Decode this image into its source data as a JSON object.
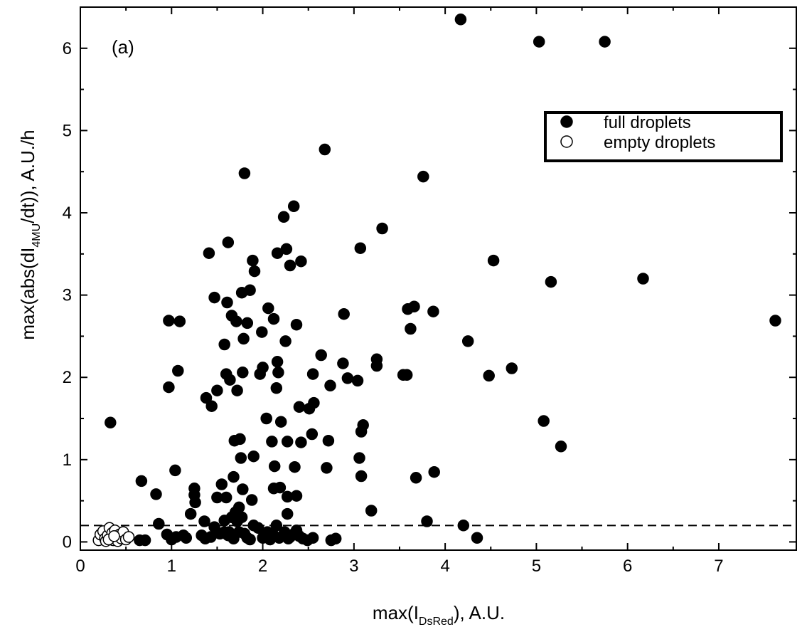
{
  "chart_data": {
    "type": "scatter",
    "panel_label": "(a)",
    "xlabel": {
      "main": "max(I",
      "sub": "DsRed",
      "tail": "), A.U."
    },
    "ylabel": {
      "main": "max(abs(dI",
      "sub": "4MU",
      "tail": "/dt)), A.U./h"
    },
    "xlim": [
      0,
      7.85
    ],
    "ylim": [
      -0.1,
      6.5
    ],
    "x_ticks": [
      0,
      1,
      2,
      3,
      4,
      5,
      6,
      7
    ],
    "y_ticks": [
      0,
      1,
      2,
      3,
      4,
      5,
      6
    ],
    "x_tick_labels": [
      "0",
      "1",
      "2",
      "3",
      "4",
      "5",
      "6",
      "7"
    ],
    "y_tick_labels": [
      "0",
      "1",
      "2",
      "3",
      "4",
      "5",
      "6"
    ],
    "threshold": 0.2,
    "grid": false,
    "legend_position": "top-right",
    "series": [
      {
        "name": "full droplets",
        "marker": "filled-circle",
        "color": "#000000",
        "points": [
          [
            0.33,
            1.45
          ],
          [
            0.67,
            0.74
          ],
          [
            0.83,
            0.58
          ],
          [
            0.97,
            2.69
          ],
          [
            0.97,
            1.88
          ],
          [
            1.04,
            0.87
          ],
          [
            1.07,
            2.08
          ],
          [
            1.09,
            2.68
          ],
          [
            1.25,
            0.65
          ],
          [
            1.25,
            0.57
          ],
          [
            1.26,
            0.48
          ],
          [
            1.21,
            0.34
          ],
          [
            1.36,
            0.25
          ],
          [
            1.38,
            1.75
          ],
          [
            1.41,
            3.51
          ],
          [
            1.44,
            1.65
          ],
          [
            1.47,
            2.97
          ],
          [
            1.5,
            1.84
          ],
          [
            1.5,
            0.54
          ],
          [
            1.55,
            0.7
          ],
          [
            1.58,
            0.26
          ],
          [
            1.58,
            2.4
          ],
          [
            1.6,
            2.04
          ],
          [
            1.6,
            0.54
          ],
          [
            1.61,
            2.91
          ],
          [
            1.62,
            3.64
          ],
          [
            1.63,
            0.12
          ],
          [
            1.64,
            1.97
          ],
          [
            1.66,
            2.75
          ],
          [
            1.68,
            0.79
          ],
          [
            1.69,
            1.23
          ],
          [
            1.7,
            0.36
          ],
          [
            1.71,
            2.68
          ],
          [
            1.72,
            1.84
          ],
          [
            1.74,
            0.42
          ],
          [
            1.75,
            1.25
          ],
          [
            1.76,
            1.02
          ],
          [
            1.77,
            3.03
          ],
          [
            1.78,
            0.64
          ],
          [
            1.78,
            2.06
          ],
          [
            1.79,
            2.47
          ],
          [
            1.8,
            4.48
          ],
          [
            1.83,
            2.66
          ],
          [
            1.86,
            3.06
          ],
          [
            1.88,
            0.51
          ],
          [
            1.89,
            3.42
          ],
          [
            1.9,
            1.04
          ],
          [
            1.91,
            3.29
          ],
          [
            1.97,
            2.04
          ],
          [
            1.99,
            2.55
          ],
          [
            2.0,
            2.12
          ],
          [
            2.04,
            1.5
          ],
          [
            2.06,
            2.84
          ],
          [
            2.1,
            1.22
          ],
          [
            2.12,
            2.71
          ],
          [
            2.12,
            0.65
          ],
          [
            2.13,
            0.92
          ],
          [
            2.15,
            1.87
          ],
          [
            2.16,
            2.19
          ],
          [
            2.16,
            3.51
          ],
          [
            2.17,
            2.06
          ],
          [
            2.19,
            0.66
          ],
          [
            2.2,
            1.46
          ],
          [
            2.23,
            3.95
          ],
          [
            2.25,
            2.44
          ],
          [
            2.26,
            3.56
          ],
          [
            2.27,
            1.22
          ],
          [
            2.27,
            0.55
          ],
          [
            2.27,
            0.34
          ],
          [
            2.3,
            3.36
          ],
          [
            2.34,
            4.08
          ],
          [
            2.35,
            0.91
          ],
          [
            2.37,
            2.64
          ],
          [
            2.37,
            0.56
          ],
          [
            2.4,
            1.64
          ],
          [
            2.42,
            3.41
          ],
          [
            2.42,
            1.21
          ],
          [
            2.51,
            1.62
          ],
          [
            2.54,
            1.31
          ],
          [
            2.55,
            2.04
          ],
          [
            2.56,
            1.69
          ],
          [
            2.64,
            2.27
          ],
          [
            2.68,
            4.77
          ],
          [
            2.7,
            0.9
          ],
          [
            2.72,
            1.23
          ],
          [
            2.74,
            1.9
          ],
          [
            2.88,
            2.17
          ],
          [
            2.89,
            2.77
          ],
          [
            2.93,
            1.99
          ],
          [
            3.04,
            1.96
          ],
          [
            3.06,
            1.02
          ],
          [
            3.07,
            3.57
          ],
          [
            3.08,
            0.8
          ],
          [
            3.08,
            1.34
          ],
          [
            3.1,
            1.42
          ],
          [
            3.19,
            0.38
          ],
          [
            3.25,
            2.22
          ],
          [
            3.25,
            2.14
          ],
          [
            3.31,
            3.81
          ],
          [
            3.54,
            2.03
          ],
          [
            3.58,
            2.03
          ],
          [
            3.59,
            2.83
          ],
          [
            3.62,
            2.59
          ],
          [
            3.66,
            2.86
          ],
          [
            3.68,
            0.78
          ],
          [
            3.76,
            4.44
          ],
          [
            3.8,
            0.25
          ],
          [
            3.87,
            2.8
          ],
          [
            3.88,
            0.85
          ],
          [
            4.17,
            6.35
          ],
          [
            4.2,
            0.2
          ],
          [
            4.25,
            2.44
          ],
          [
            4.35,
            0.05
          ],
          [
            4.48,
            2.02
          ],
          [
            4.53,
            3.42
          ],
          [
            4.73,
            2.11
          ],
          [
            5.03,
            6.08
          ],
          [
            5.08,
            1.47
          ],
          [
            5.16,
            3.16
          ],
          [
            5.27,
            1.16
          ],
          [
            5.75,
            6.08
          ],
          [
            6.17,
            3.2
          ],
          [
            7.62,
            2.69
          ],
          [
            0.65,
            0.02
          ],
          [
            0.71,
            0.02
          ],
          [
            0.86,
            0.22
          ],
          [
            0.95,
            0.09
          ],
          [
            1.0,
            0.03
          ],
          [
            1.05,
            0.06
          ],
          [
            1.13,
            0.08
          ],
          [
            1.16,
            0.05
          ],
          [
            1.33,
            0.08
          ],
          [
            1.37,
            0.04
          ],
          [
            1.43,
            0.06
          ],
          [
            1.47,
            0.18
          ],
          [
            1.53,
            0.1
          ],
          [
            1.58,
            0.12
          ],
          [
            1.62,
            0.08
          ],
          [
            1.66,
            0.3
          ],
          [
            1.68,
            0.04
          ],
          [
            1.72,
            0.25
          ],
          [
            1.74,
            0.12
          ],
          [
            1.77,
            0.3
          ],
          [
            1.8,
            0.1
          ],
          [
            1.83,
            0.05
          ],
          [
            1.86,
            0.03
          ],
          [
            1.9,
            0.2
          ],
          [
            1.95,
            0.17
          ],
          [
            2.0,
            0.05
          ],
          [
            2.05,
            0.12
          ],
          [
            2.08,
            0.03
          ],
          [
            2.12,
            0.08
          ],
          [
            2.15,
            0.2
          ],
          [
            2.18,
            0.05
          ],
          [
            2.24,
            0.12
          ],
          [
            2.28,
            0.04
          ],
          [
            2.3,
            0.06
          ],
          [
            2.33,
            0.09
          ],
          [
            2.37,
            0.14
          ],
          [
            2.4,
            0.07
          ],
          [
            2.44,
            0.04
          ],
          [
            2.49,
            0.02
          ],
          [
            2.55,
            0.05
          ],
          [
            2.75,
            0.02
          ],
          [
            2.8,
            0.04
          ]
        ]
      },
      {
        "name": "empty droplets",
        "marker": "open-circle",
        "color": "#000000",
        "points": [
          [
            0.2,
            0.02
          ],
          [
            0.22,
            0.09
          ],
          [
            0.25,
            0.13
          ],
          [
            0.27,
            0.04
          ],
          [
            0.28,
            0.01
          ],
          [
            0.3,
            0.08
          ],
          [
            0.32,
            0.17
          ],
          [
            0.33,
            0.05
          ],
          [
            0.35,
            0.11
          ],
          [
            0.36,
            0.02
          ],
          [
            0.38,
            0.14
          ],
          [
            0.4,
            0.06
          ],
          [
            0.41,
            0.01
          ],
          [
            0.43,
            0.09
          ],
          [
            0.45,
            0.04
          ],
          [
            0.47,
            0.12
          ],
          [
            0.5,
            0.03
          ],
          [
            0.53,
            0.06
          ],
          [
            0.31,
            0.03
          ],
          [
            0.37,
            0.07
          ]
        ]
      }
    ]
  }
}
